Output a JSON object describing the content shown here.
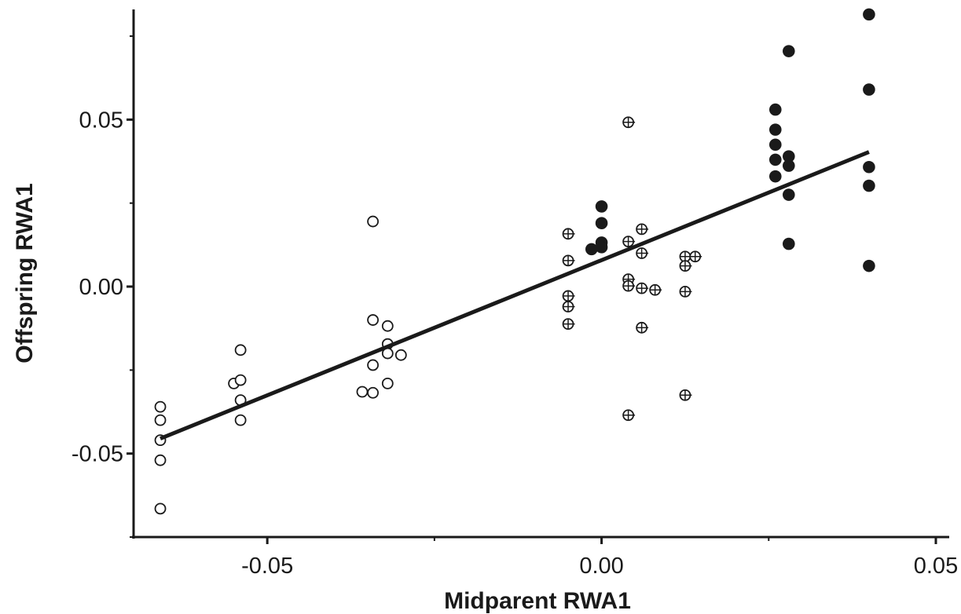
{
  "chart_data": {
    "type": "scatter",
    "xlabel": "Midparent RWA1",
    "ylabel": "Offspring RWA1",
    "xlim": [
      -0.07,
      0.052
    ],
    "ylim": [
      -0.075,
      0.083
    ],
    "x_ticks": [
      {
        "value": -0.05,
        "label": "-0.05"
      },
      {
        "value": 0.0,
        "label": "0.00"
      },
      {
        "value": 0.05,
        "label": "0.05"
      }
    ],
    "x_minor_ticks": [
      -0.025,
      0.025
    ],
    "y_ticks": [
      {
        "value": 0.05,
        "label": "0.05"
      },
      {
        "value": 0.0,
        "label": "0.00"
      },
      {
        "value": -0.05,
        "label": "-0.05"
      }
    ],
    "y_minor_ticks": [
      0.075,
      0.025,
      -0.025,
      -0.075
    ],
    "grid": false,
    "legend": "none",
    "series": [
      {
        "marker": "open-circle",
        "points": [
          [
            -0.066,
            -0.036
          ],
          [
            -0.066,
            -0.04
          ],
          [
            -0.066,
            -0.046
          ],
          [
            -0.066,
            -0.052
          ],
          [
            -0.066,
            -0.0665
          ],
          [
            -0.055,
            -0.029
          ],
          [
            -0.054,
            -0.019
          ],
          [
            -0.054,
            -0.028
          ],
          [
            -0.054,
            -0.034
          ],
          [
            -0.054,
            -0.04
          ],
          [
            -0.0358,
            -0.0315
          ],
          [
            -0.0342,
            0.0195
          ],
          [
            -0.0342,
            -0.01
          ],
          [
            -0.0342,
            -0.0235
          ],
          [
            -0.0342,
            -0.0318
          ],
          [
            -0.032,
            -0.0118
          ],
          [
            -0.032,
            -0.0172
          ],
          [
            -0.032,
            -0.02
          ],
          [
            -0.032,
            -0.029
          ],
          [
            -0.03,
            -0.0205
          ]
        ]
      },
      {
        "marker": "crossed-circle",
        "points": [
          [
            -0.005,
            0.0158
          ],
          [
            -0.005,
            0.0078
          ],
          [
            -0.005,
            -0.0028
          ],
          [
            -0.005,
            -0.006
          ],
          [
            -0.005,
            -0.0112
          ],
          [
            0.004,
            0.0492
          ],
          [
            0.004,
            0.0135
          ],
          [
            0.004,
            0.0022
          ],
          [
            0.004,
            0.0002
          ],
          [
            0.004,
            -0.0385
          ],
          [
            0.006,
            0.0172
          ],
          [
            0.006,
            0.01
          ],
          [
            0.006,
            -0.0005
          ],
          [
            0.006,
            -0.0123
          ],
          [
            0.008,
            -0.001
          ],
          [
            0.0125,
            0.009
          ],
          [
            0.0125,
            0.0062
          ],
          [
            0.0125,
            -0.0015
          ],
          [
            0.0125,
            -0.0325
          ],
          [
            0.014,
            0.009
          ]
        ]
      },
      {
        "marker": "filled-circle",
        "points": [
          [
            -0.0015,
            0.0112
          ],
          [
            0.0,
            0.024
          ],
          [
            0.0,
            0.019
          ],
          [
            0.0,
            0.0132
          ],
          [
            0.0,
            0.0118
          ],
          [
            0.026,
            0.053
          ],
          [
            0.026,
            0.047
          ],
          [
            0.026,
            0.0425
          ],
          [
            0.026,
            0.038
          ],
          [
            0.026,
            0.033
          ],
          [
            0.028,
            0.0705
          ],
          [
            0.028,
            0.039
          ],
          [
            0.028,
            0.0362
          ],
          [
            0.028,
            0.0275
          ],
          [
            0.028,
            0.0128
          ],
          [
            0.04,
            0.0815
          ],
          [
            0.04,
            0.059
          ],
          [
            0.04,
            0.0358
          ],
          [
            0.04,
            0.0302
          ],
          [
            0.04,
            0.0062
          ]
        ]
      }
    ],
    "regression_line": {
      "from": [
        -0.066,
        -0.0455
      ],
      "to": [
        0.04,
        0.0403
      ]
    }
  }
}
